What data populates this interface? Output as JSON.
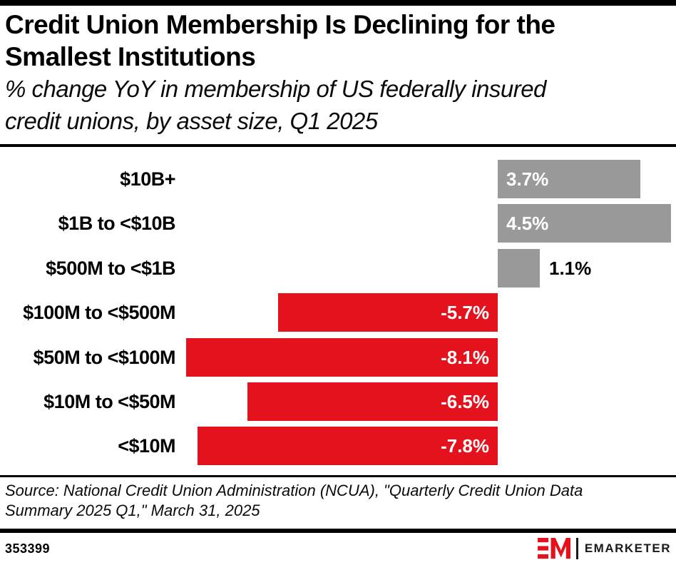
{
  "header": {
    "title_line1": "Credit Union Membership Is Declining for the",
    "title_line2": "Smallest Institutions",
    "subtitle_line1": "% change YoY in membership of US federally insured",
    "subtitle_line2": "credit unions, by asset size, Q1 2025"
  },
  "chart_data": {
    "type": "bar",
    "orientation": "horizontal",
    "title": "Credit Union Membership Is Declining for the Smallest Institutions",
    "subtitle": "% change YoY in membership of US federally insured credit unions, by asset size, Q1 2025",
    "categories": [
      "$10B+",
      "$1B to <$10B",
      "$500M to <$1B",
      "$100M to <$500M",
      "$50M to <$100M",
      "$10M to <$50M",
      "<$10M"
    ],
    "values": [
      3.7,
      4.5,
      1.1,
      -5.7,
      -8.1,
      -6.5,
      -7.8
    ],
    "value_labels": [
      "3.7%",
      "4.5%",
      "1.1%",
      "-5.7%",
      "-6.5%",
      "-7.8%"
    ],
    "value_labels_full": [
      "3.7%",
      "4.5%",
      "1.1%",
      "-5.7%",
      "-8.1%",
      "-6.5%",
      "-7.8%"
    ],
    "xlabel": "",
    "ylabel": "",
    "xlim": [
      -8.1,
      4.5
    ],
    "grid": false,
    "legend": false,
    "positive_color": "#999999",
    "negative_color": "#E4121C"
  },
  "footer": {
    "source_line1": "Source: National Credit Union Administration (NCUA), \"Quarterly Credit Union Data",
    "source_line2": "Summary 2025 Q1,\" March 31, 2025",
    "chart_id": "353399",
    "brand_name": "EMARKETER"
  },
  "colors": {
    "accent_red": "#E4121C",
    "bar_gray": "#999999",
    "label_inside": "#FFFFFF",
    "label_outside": "#000000",
    "rule_black": "#000000",
    "background": "#FFFFFF"
  }
}
